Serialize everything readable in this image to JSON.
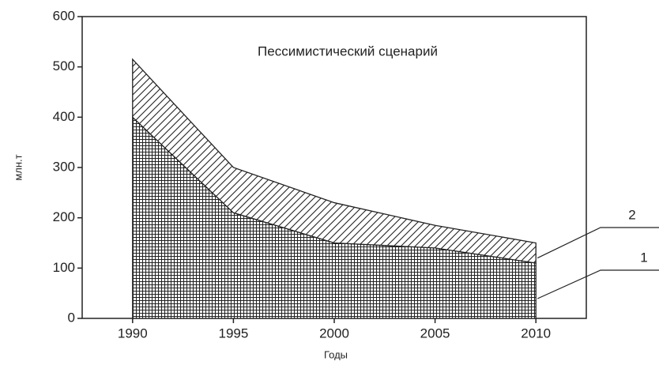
{
  "chart_data": {
    "type": "stacked_area",
    "title": "Пессимистический сценарий",
    "xlabel": "Годы",
    "ylabel": "млн.т",
    "x": [
      1990,
      1995,
      2000,
      2005,
      2010
    ],
    "series": [
      {
        "name": "1",
        "color": "#222222",
        "pattern": "crosshatch",
        "values": [
          400,
          210,
          150,
          140,
          110
        ]
      },
      {
        "name": "2",
        "color": "#222222",
        "pattern": "diagonal",
        "values": [
          115,
          90,
          80,
          45,
          40
        ]
      }
    ],
    "xlim": [
      1987.5,
      2012.5
    ],
    "ylim": [
      0,
      600
    ],
    "xticks": [
      1990,
      1995,
      2000,
      2005,
      2010
    ],
    "yticks": [
      0,
      100,
      200,
      300,
      400,
      500,
      600
    ]
  }
}
